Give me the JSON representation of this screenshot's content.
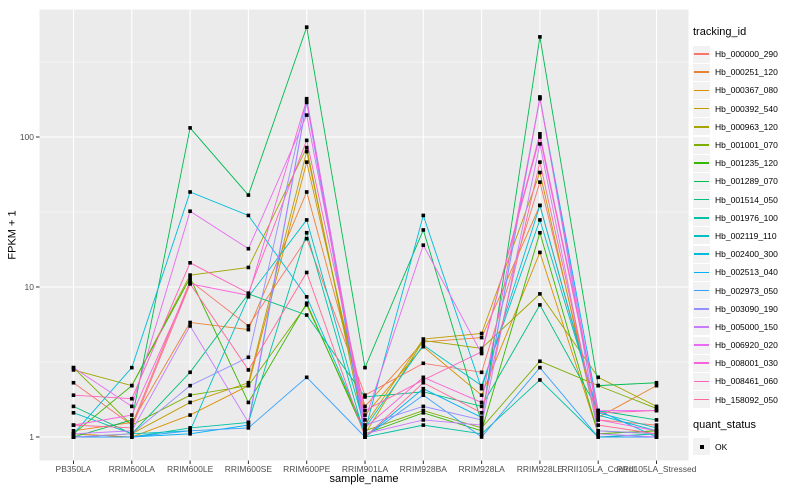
{
  "chart_data": {
    "type": "line",
    "title": "",
    "xlabel": "sample_name",
    "ylabel": "FPKM + 1",
    "y_scale": "log10",
    "y_ticks": [
      1,
      10,
      100
    ],
    "ylim": [
      0.93,
      700
    ],
    "grid": true,
    "legend_position": "right",
    "panel_bg": "#EBEBEB",
    "grid_color": "#FFFFFF",
    "tick_color": "#333333",
    "tick_label_color": "#4D4D4D",
    "point_color": "#000000",
    "point_shape": "square",
    "categories": [
      "PB350LA",
      "RRIM600LA",
      "RRIM600LE",
      "RRIM600SE",
      "RRIM600PE",
      "RRIM901LA",
      "RRIM928BA",
      "RRIM928LA",
      "RRIM928LE",
      "RRII105LA_Control",
      "RRII105LA_Stressed"
    ],
    "series": [
      {
        "name": "Hb_000000_290",
        "color": "#F8766D",
        "values": [
          2.3,
          1.2,
          11,
          5.5,
          21,
          1.9,
          3.1,
          2.7,
          50,
          1.3,
          1.2
        ]
      },
      {
        "name": "Hb_000251_120",
        "color": "#EA8331",
        "values": [
          1.1,
          1.25,
          5.8,
          5.2,
          43,
          1.6,
          4.3,
          4.6,
          35,
          1.35,
          2.2
        ]
      },
      {
        "name": "Hb_000367_080",
        "color": "#D89000",
        "values": [
          1.05,
          1.0,
          1.4,
          2.2,
          68,
          1.4,
          4.0,
          1.9,
          17,
          1.05,
          1.1
        ]
      },
      {
        "name": "Hb_000392_540",
        "color": "#C09B00",
        "values": [
          1.0,
          1.05,
          1.7,
          2.3,
          80,
          1.2,
          4.5,
          4.9,
          58,
          1.1,
          1.05
        ]
      },
      {
        "name": "Hb_000963_120",
        "color": "#A3A500",
        "values": [
          2.8,
          2.2,
          12,
          13.5,
          85,
          1.05,
          4.4,
          3.9,
          9,
          2.5,
          1.6
        ]
      },
      {
        "name": "Hb_001001_070",
        "color": "#7CAE00",
        "values": [
          2.9,
          1.2,
          1.9,
          2.2,
          7.6,
          1.1,
          1.5,
          1.15,
          3.2,
          2.2,
          1.55
        ]
      },
      {
        "name": "Hb_001235_120",
        "color": "#39B600",
        "values": [
          1.05,
          2.2,
          11.5,
          1.7,
          7.8,
          1.05,
          1.45,
          1.1,
          23,
          1.05,
          1.1
        ]
      },
      {
        "name": "Hb_001289_070",
        "color": "#00BB4E",
        "values": [
          1.0,
          1.3,
          115,
          41,
          540,
          2.9,
          24,
          1.25,
          465,
          2.2,
          2.3
        ]
      },
      {
        "name": "Hb_001514_050",
        "color": "#00BF7D",
        "values": [
          1.6,
          1.05,
          2.7,
          9.0,
          6.5,
          1.85,
          2.0,
          1.6,
          7.6,
          1.5,
          1.3
        ]
      },
      {
        "name": "Hb_001976_100",
        "color": "#00C1A3",
        "values": [
          1.0,
          1.0,
          1.15,
          1.25,
          23,
          1.0,
          1.2,
          1.05,
          2.4,
          1.0,
          1.05
        ]
      },
      {
        "name": "Hb_002119_110",
        "color": "#00BFC4",
        "values": [
          1.45,
          1.05,
          1.1,
          8.6,
          28,
          1.15,
          4.1,
          2.2,
          28,
          1.45,
          1.15
        ]
      },
      {
        "name": "Hb_002400_300",
        "color": "#00BBDA",
        "values": [
          1.05,
          2.9,
          43,
          30,
          8.6,
          1.1,
          30,
          2.1,
          35,
          1.4,
          1.1
        ]
      },
      {
        "name": "Hb_002513_040",
        "color": "#00B0F6",
        "values": [
          1.0,
          1.0,
          1.05,
          1.2,
          170,
          1.0,
          2.1,
          1.35,
          182,
          1.5,
          1.0
        ]
      },
      {
        "name": "Hb_002973_050",
        "color": "#35A2FF",
        "values": [
          1.0,
          1.0,
          1.1,
          1.15,
          2.5,
          1.0,
          1.9,
          1.0,
          2.9,
          1.0,
          1.0
        ]
      },
      {
        "name": "Hb_003090_190",
        "color": "#9590FF",
        "values": [
          1.0,
          1.05,
          2.2,
          3.4,
          180,
          1.2,
          1.6,
          1.3,
          185,
          1.1,
          1.05
        ]
      },
      {
        "name": "Hb_005000_150",
        "color": "#C77CFF",
        "values": [
          1.05,
          1.1,
          5.5,
          1.25,
          172,
          1.05,
          1.3,
          1.2,
          90,
          1.05,
          1.0
        ]
      },
      {
        "name": "Hb_006920_020",
        "color": "#E76BF3",
        "values": [
          2.9,
          1.6,
          32,
          18,
          140,
          1.3,
          19,
          3.6,
          105,
          1.5,
          1.5
        ]
      },
      {
        "name": "Hb_008001_030",
        "color": "#FA62DB",
        "values": [
          1.2,
          1.4,
          10.5,
          8.8,
          178,
          1.15,
          2.5,
          1.7,
          180,
          1.3,
          1.1
        ]
      },
      {
        "name": "Hb_008461_060",
        "color": "#FF62BC",
        "values": [
          1.9,
          1.8,
          14.5,
          9.1,
          95,
          1.5,
          2.4,
          3.7,
          100,
          1.45,
          1.5
        ]
      },
      {
        "name": "Hb_158092_050",
        "color": "#FF6A98",
        "values": [
          1.2,
          1.15,
          10.5,
          2.8,
          12.5,
          1.0,
          2.3,
          1.45,
          68,
          1.2,
          1.05
        ]
      }
    ]
  },
  "legend": {
    "tracking_title": "tracking_id",
    "quant_title": "quant_status",
    "quant_ok_label": "OK"
  }
}
